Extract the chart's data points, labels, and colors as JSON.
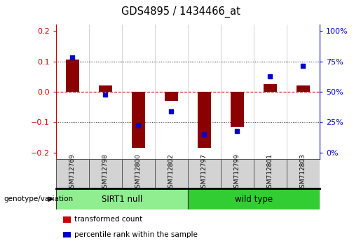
{
  "title": "GDS4895 / 1434466_at",
  "samples": [
    "GSM712769",
    "GSM712798",
    "GSM712800",
    "GSM712802",
    "GSM712797",
    "GSM712799",
    "GSM712801",
    "GSM712803"
  ],
  "red_values": [
    0.105,
    0.02,
    -0.185,
    -0.03,
    -0.185,
    -0.115,
    0.025,
    0.02
  ],
  "blue_values_mapped": [
    0.113,
    -0.01,
    -0.11,
    -0.065,
    -0.14,
    -0.13,
    0.05,
    0.085
  ],
  "groups": [
    {
      "label": "SIRT1 null",
      "start": 0,
      "end": 4,
      "color": "#90EE90"
    },
    {
      "label": "wild type",
      "start": 4,
      "end": 8,
      "color": "#32CD32"
    }
  ],
  "ylim": [
    -0.22,
    0.22
  ],
  "yticks_left": [
    -0.2,
    -0.1,
    0.0,
    0.1,
    0.2
  ],
  "yticks_right_vals": [
    0,
    25,
    50,
    75,
    100
  ],
  "left_axis_color": "#CC0000",
  "right_axis_color": "#0000CC",
  "bar_color": "#8B0000",
  "dot_color": "#0000CC",
  "group_label": "genotype/variation",
  "legend_items": [
    {
      "label": "transformed count",
      "color": "#CC0000"
    },
    {
      "label": "percentile rank within the sample",
      "color": "#0000CC"
    }
  ]
}
